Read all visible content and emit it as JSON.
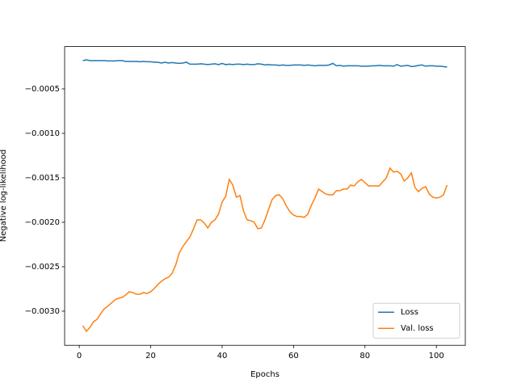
{
  "chart_data": {
    "type": "line",
    "x_label": "Epochs",
    "y_label": "Negative log-likelihood",
    "x": [
      1,
      2,
      3,
      4,
      5,
      6,
      7,
      8,
      9,
      10,
      11,
      12,
      13,
      14,
      15,
      16,
      17,
      18,
      19,
      20,
      21,
      22,
      23,
      24,
      25,
      26,
      27,
      28,
      29,
      30,
      31,
      32,
      33,
      34,
      35,
      36,
      37,
      38,
      39,
      40,
      41,
      42,
      43,
      44,
      45,
      46,
      47,
      48,
      49,
      50,
      51,
      52,
      53,
      54,
      55,
      56,
      57,
      58,
      59,
      60,
      61,
      62,
      63,
      64,
      65,
      66,
      67,
      68,
      69,
      70,
      71,
      72,
      73,
      74,
      75,
      76,
      77,
      78,
      79,
      80,
      81,
      82,
      83,
      84,
      85,
      86,
      87,
      88,
      89,
      90,
      91,
      92,
      93,
      94,
      95,
      96,
      97,
      98,
      99,
      100,
      101,
      102,
      103
    ],
    "series": [
      {
        "name": "Loss",
        "color": "#1f77b4",
        "values": [
          -0.000182,
          -0.000173,
          -0.000182,
          -0.000182,
          -0.000182,
          -0.000182,
          -0.000182,
          -0.000186,
          -0.000186,
          -0.000186,
          -0.000182,
          -0.000182,
          -0.000191,
          -0.000191,
          -0.000191,
          -0.000191,
          -0.000195,
          -0.000191,
          -0.000195,
          -0.000195,
          -0.0002,
          -0.0002,
          -0.000209,
          -0.0002,
          -0.000209,
          -0.000204,
          -0.000209,
          -0.000213,
          -0.000209,
          -0.0002,
          -0.000222,
          -0.000222,
          -0.000222,
          -0.000218,
          -0.000222,
          -0.000227,
          -0.000222,
          -0.000218,
          -0.000227,
          -0.000213,
          -0.000227,
          -0.000222,
          -0.000227,
          -0.000222,
          -0.000222,
          -0.000227,
          -0.000222,
          -0.000227,
          -0.000227,
          -0.000218,
          -0.000222,
          -0.000231,
          -0.000227,
          -0.000231,
          -0.000231,
          -0.000236,
          -0.000231,
          -0.000236,
          -0.000236,
          -0.000231,
          -0.000231,
          -0.000231,
          -0.000236,
          -0.000231,
          -0.000236,
          -0.00024,
          -0.000236,
          -0.000236,
          -0.000236,
          -0.000231,
          -0.000213,
          -0.00024,
          -0.000236,
          -0.000245,
          -0.00024,
          -0.00024,
          -0.00024,
          -0.00024,
          -0.000245,
          -0.000245,
          -0.000245,
          -0.00024,
          -0.00024,
          -0.000236,
          -0.00024,
          -0.00024,
          -0.00024,
          -0.000245,
          -0.000227,
          -0.000245,
          -0.00024,
          -0.000236,
          -0.000249,
          -0.000245,
          -0.000236,
          -0.000231,
          -0.000245,
          -0.00024,
          -0.00024,
          -0.000245,
          -0.000245,
          -0.000249,
          -0.000255
        ]
      },
      {
        "name": "Val. loss",
        "color": "#ff7f0e",
        "values": [
          -0.003164,
          -0.003227,
          -0.003182,
          -0.003118,
          -0.003091,
          -0.003027,
          -0.002973,
          -0.002945,
          -0.002909,
          -0.002873,
          -0.002855,
          -0.002845,
          -0.002818,
          -0.002782,
          -0.002791,
          -0.002809,
          -0.002809,
          -0.002791,
          -0.0028,
          -0.002782,
          -0.002745,
          -0.0027,
          -0.002664,
          -0.002636,
          -0.002618,
          -0.002573,
          -0.002482,
          -0.002345,
          -0.002273,
          -0.002218,
          -0.002164,
          -0.002073,
          -0.001973,
          -0.001973,
          -0.002009,
          -0.002064,
          -0.002,
          -0.001973,
          -0.001909,
          -0.001773,
          -0.001709,
          -0.001518,
          -0.001582,
          -0.001718,
          -0.0017,
          -0.001873,
          -0.001973,
          -0.001982,
          -0.002,
          -0.002073,
          -0.002064,
          -0.001973,
          -0.001855,
          -0.001745,
          -0.0017,
          -0.001691,
          -0.001736,
          -0.001818,
          -0.001882,
          -0.001918,
          -0.001936,
          -0.001936,
          -0.001945,
          -0.001909,
          -0.001809,
          -0.001727,
          -0.001627,
          -0.001655,
          -0.001682,
          -0.001691,
          -0.001691,
          -0.001645,
          -0.001645,
          -0.001627,
          -0.001627,
          -0.001582,
          -0.001591,
          -0.001545,
          -0.001518,
          -0.001555,
          -0.001591,
          -0.001591,
          -0.001591,
          -0.001591,
          -0.001545,
          -0.0015,
          -0.001391,
          -0.001436,
          -0.001427,
          -0.001455,
          -0.001536,
          -0.0015,
          -0.001445,
          -0.001609,
          -0.001655,
          -0.001618,
          -0.0016,
          -0.001682,
          -0.001718,
          -0.001727,
          -0.001718,
          -0.001691,
          -0.001582
        ]
      }
    ],
    "xlim": [
      -4.1,
      108.1
    ],
    "ylim": [
      -0.003384,
      -2.4e-05
    ],
    "xticks": [
      0,
      20,
      40,
      60,
      80,
      100
    ],
    "yticks": [
      {
        "value": -0.0005,
        "label": "−0.0005"
      },
      {
        "value": -0.001,
        "label": "−0.0010"
      },
      {
        "value": -0.0015,
        "label": "−0.0015"
      },
      {
        "value": -0.002,
        "label": "−0.0020"
      },
      {
        "value": -0.0025,
        "label": "−0.0025"
      },
      {
        "value": -0.003,
        "label": "−0.0030"
      }
    ],
    "legend_position": "lower right"
  }
}
